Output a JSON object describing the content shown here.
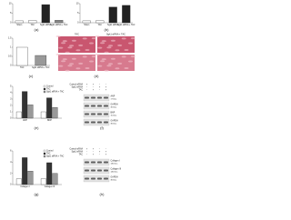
{
  "chart_data": [
    {
      "type": "bar",
      "categories": [
        "Sham",
        "TAC",
        "Sgk1 siRNA",
        "Sgk1 siRNA + TAC"
      ],
      "values": [
        1,
        1.2,
        9.5,
        1.3
      ],
      "colors": [
        "#ffffff",
        "#ffffff",
        "#222222",
        "#888888"
      ],
      "ylim": [
        0,
        10
      ],
      "yticks": [
        0,
        5,
        10
      ]
    },
    {
      "type": "bar",
      "categories": [
        "Sham",
        "TAC",
        "Sgk1 siRNA",
        "Sgk1 siRNA + TAC"
      ],
      "values": [
        1,
        1.1,
        8.2,
        9.1
      ],
      "colors": [
        "#ffffff",
        "#ffffff",
        "#222222",
        "#222222"
      ],
      "ylim": [
        0,
        10
      ],
      "yticks": [
        0,
        5,
        10
      ]
    },
    {
      "type": "bar",
      "categories": [
        "TAC",
        "Sgk1 siRNA + TAC"
      ],
      "values": [
        1,
        0.55
      ],
      "colors": [
        "#ffffff",
        "#999999"
      ],
      "ylim": [
        0,
        1.5
      ],
      "yticks": [
        0,
        0.5,
        1,
        1.5
      ]
    },
    {
      "type": "grouped-bar",
      "categories": [
        "ANP",
        "BNP"
      ],
      "series": [
        {
          "name": "Control",
          "color": "#ffffff",
          "values": [
            1,
            1
          ]
        },
        {
          "name": "TAC",
          "color": "#333333",
          "values": [
            4.2,
            3.2
          ]
        },
        {
          "name": "Sgk1 siRNA + TAC",
          "color": "#999999",
          "values": [
            2.1,
            1.7
          ]
        }
      ],
      "ylim": [
        0,
        5
      ],
      "yticks": [
        0,
        1,
        2,
        3,
        4,
        5
      ]
    },
    {
      "type": "grouped-bar",
      "categories": [
        "Collagen I",
        "Collagen III"
      ],
      "series": [
        {
          "name": "Control",
          "color": "#ffffff",
          "values": [
            1,
            1
          ]
        },
        {
          "name": "TAC",
          "color": "#333333",
          "values": [
            4.8,
            3.9
          ]
        },
        {
          "name": "Sgk1 siRNA + TAC",
          "color": "#999999",
          "values": [
            2.4,
            2.0
          ]
        }
      ],
      "ylim": [
        0,
        6
      ],
      "yticks": [
        0,
        2,
        4,
        6
      ]
    }
  ],
  "histology": {
    "columns": [
      "TAC",
      "Sgk1 siRNA + TAC"
    ]
  },
  "blots": [
    {
      "conditions": [
        {
          "label": "Control siRNA",
          "signs": [
            "+",
            "+",
            "−",
            "−"
          ]
        },
        {
          "label": "Sgk1 siRNA",
          "signs": [
            "−",
            "−",
            "+",
            "+"
          ]
        },
        {
          "label": "TAC",
          "signs": [
            "−",
            "+",
            "−",
            "+"
          ]
        }
      ],
      "bands": [
        {
          "name": "ANP",
          "size": "17 kDa"
        },
        {
          "name": "GAPDH",
          "size": "36 kDa"
        },
        {
          "name": "BNP",
          "size": "15 kDa"
        },
        {
          "name": "GAPDH",
          "size": "36 kDa"
        }
      ]
    },
    {
      "conditions": [
        {
          "label": "Control siRNA",
          "signs": [
            "+",
            "+",
            "−",
            "−"
          ]
        },
        {
          "label": "Sgk1 siRNA",
          "signs": [
            "−",
            "−",
            "+",
            "+"
          ]
        },
        {
          "label": "TAC",
          "signs": [
            "−",
            "+",
            "−",
            "+"
          ]
        }
      ],
      "bands": [
        {
          "name": "Collagen I",
          "size": "130 kDa"
        },
        {
          "name": "Collagen III",
          "size": "140 kDa"
        },
        {
          "name": "GAPDH",
          "size": "36 kDa"
        }
      ]
    }
  ],
  "panel_labels": [
    "(a)",
    "(b)",
    "(c)",
    "(d)",
    "(e)",
    "(f)",
    "(g)",
    "(h)"
  ]
}
